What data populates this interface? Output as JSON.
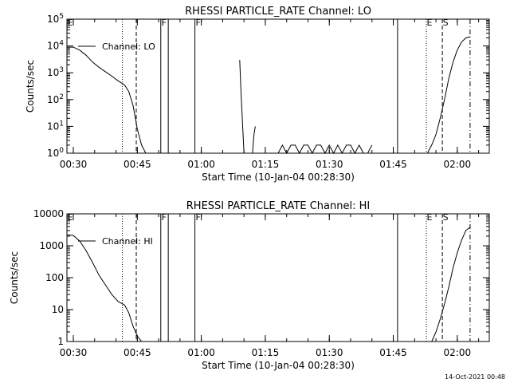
{
  "chart_data": [
    {
      "type": "line",
      "title": "RHESSI PARTICLE_RATE Channel: LO",
      "xlabel": "Start Time (10-Jan-04 00:28:30)",
      "ylabel": "Counts/sec",
      "yscale": "log",
      "ylim": [
        1,
        100000
      ],
      "xlim": [
        "00:28:30",
        "02:07:30"
      ],
      "x_ticks": [
        "00:30",
        "00:45",
        "01:00",
        "01:15",
        "01:30",
        "01:45",
        "02:00"
      ],
      "y_ticks": [
        "10^0",
        "10^1",
        "10^2",
        "10^3",
        "10^4",
        "10^5"
      ],
      "legend": "Channel: LO",
      "legend_placement": "top-left",
      "markers": [
        {
          "label": "E",
          "time": "00:28:30",
          "style": "solid"
        },
        {
          "label": "",
          "time": "00:41:30",
          "style": "dotted"
        },
        {
          "label": "",
          "time": "00:44:45",
          "style": "dashed"
        },
        {
          "label": "F",
          "time": "00:50:30",
          "style": "solid"
        },
        {
          "label": "",
          "time": "00:52:15",
          "style": "solid"
        },
        {
          "label": "F",
          "time": "00:58:30",
          "style": "solid"
        },
        {
          "label": "",
          "time": "01:46:00",
          "style": "solid"
        },
        {
          "label": "E",
          "time": "01:52:45",
          "style": "dotted"
        },
        {
          "label": "S",
          "time": "01:56:30",
          "style": "dashed"
        },
        {
          "label": "",
          "time": "02:03:00",
          "style": "dashdot"
        }
      ],
      "series": [
        {
          "x": [
            "00:28:30",
            "00:30:00",
            "00:31:30",
            "00:33:00",
            "00:34:30",
            "00:36:00",
            "00:37:30",
            "00:39:00",
            "00:40:30",
            "00:42:00",
            "00:43:00",
            "00:44:00",
            "00:45:00",
            "00:46:00",
            "00:47:00"
          ],
          "values": [
            9000,
            9000,
            7000,
            4500,
            2500,
            1600,
            1100,
            750,
            500,
            350,
            200,
            60,
            8,
            2,
            1
          ]
        },
        {
          "x": [
            "01:09:00",
            "01:09:20",
            "01:09:40",
            "01:10:00"
          ],
          "values": [
            3000,
            150,
            12,
            1
          ]
        },
        {
          "x": [
            "01:12:00",
            "01:12:20",
            "01:12:40"
          ],
          "values": [
            1,
            5,
            10
          ]
        },
        {
          "x": [
            "01:18:00",
            "01:19:00",
            "01:20:00",
            "01:21:00",
            "01:22:00",
            "01:23:00",
            "01:24:00",
            "01:25:00",
            "01:26:00",
            "01:27:00",
            "01:28:00",
            "01:29:00",
            "01:30:00",
            "01:31:00",
            "01:32:00",
            "01:33:00",
            "01:34:00",
            "01:35:00",
            "01:36:00",
            "01:37:00",
            "01:38:00",
            "01:39:00",
            "01:40:00"
          ],
          "values": [
            1,
            2,
            1,
            2,
            2,
            1,
            2,
            2,
            1,
            2,
            2,
            1,
            2,
            1,
            2,
            1,
            2,
            2,
            1,
            2,
            1,
            1,
            2
          ]
        },
        {
          "x": [
            "01:53:00",
            "01:54:00",
            "01:55:00",
            "01:56:00",
            "01:57:00",
            "01:58:00",
            "01:59:00",
            "02:00:00",
            "02:01:00",
            "02:02:00",
            "02:03:00"
          ],
          "values": [
            1,
            2,
            5,
            20,
            100,
            600,
            2500,
            7000,
            14000,
            20000,
            22000
          ]
        }
      ]
    },
    {
      "type": "line",
      "title": "RHESSI PARTICLE_RATE Channel: HI",
      "xlabel": "Start Time (10-Jan-04 00:28:30)",
      "ylabel": "Counts/sec",
      "yscale": "log",
      "ylim": [
        1,
        10000
      ],
      "xlim": [
        "00:28:30",
        "02:07:30"
      ],
      "x_ticks": [
        "00:30",
        "00:45",
        "01:00",
        "01:15",
        "01:30",
        "01:45",
        "02:00"
      ],
      "y_ticks": [
        "1",
        "10",
        "100",
        "1000",
        "10000"
      ],
      "legend": "Channel: HI",
      "legend_placement": "top-left",
      "markers": [
        {
          "label": "E",
          "time": "00:28:30",
          "style": "solid"
        },
        {
          "label": "",
          "time": "00:41:30",
          "style": "dotted"
        },
        {
          "label": "",
          "time": "00:44:45",
          "style": "dashed"
        },
        {
          "label": "F",
          "time": "00:50:30",
          "style": "solid"
        },
        {
          "label": "",
          "time": "00:52:15",
          "style": "solid"
        },
        {
          "label": "F",
          "time": "00:58:30",
          "style": "solid"
        },
        {
          "label": "",
          "time": "01:46:00",
          "style": "solid"
        },
        {
          "label": "E",
          "time": "01:52:45",
          "style": "dotted"
        },
        {
          "label": "S",
          "time": "01:56:30",
          "style": "dashed"
        },
        {
          "label": "",
          "time": "02:03:00",
          "style": "dashdot"
        }
      ],
      "series": [
        {
          "x": [
            "00:28:30",
            "00:30:00",
            "00:31:30",
            "00:33:00",
            "00:34:30",
            "00:36:00",
            "00:37:30",
            "00:39:00",
            "00:40:30",
            "00:42:00",
            "00:43:00",
            "00:44:00",
            "00:45:00",
            "00:46:00"
          ],
          "values": [
            2200,
            2100,
            1400,
            700,
            300,
            120,
            60,
            30,
            18,
            14,
            8,
            3,
            1.5,
            1
          ]
        },
        {
          "x": [
            "01:54:00",
            "01:55:00",
            "01:56:00",
            "01:57:00",
            "01:58:00",
            "01:59:00",
            "02:00:00",
            "02:01:00",
            "02:02:00",
            "02:03:00"
          ],
          "values": [
            1,
            2,
            5,
            15,
            50,
            200,
            600,
            1500,
            3000,
            3800
          ]
        }
      ]
    }
  ],
  "footer": "14-Oct-2021 00:48"
}
